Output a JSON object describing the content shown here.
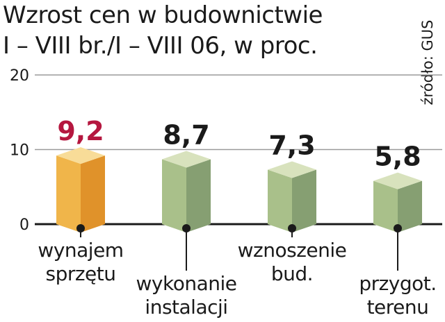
{
  "chart_data": {
    "type": "bar",
    "title_lines": [
      "Wzrost cen w budownictwie",
      "I – VIII br./I – VIII 06, w proc."
    ],
    "source": "źródło: GUS",
    "categories": [
      [
        "wynajem",
        "sprzętu"
      ],
      [
        "wykonanie",
        "instalacji"
      ],
      [
        "wznoszenie",
        "bud."
      ],
      [
        "przygot.",
        "terenu"
      ]
    ],
    "values": [
      9.2,
      8.7,
      7.3,
      5.8
    ],
    "value_labels": [
      "9,2",
      "8,7",
      "7,3",
      "5,8"
    ],
    "yticks": [
      "0",
      "10",
      "20"
    ],
    "ylim": [
      0,
      20
    ],
    "grid": true,
    "colors": {
      "highlight_front": "#f0b54a",
      "highlight_side": "#e0922a",
      "highlight_top": "#f8dc98",
      "highlight_label": "#b5173f",
      "bar_front": "#a9c08a",
      "bar_side": "#869f72",
      "bar_top": "#d8e2bd",
      "label": "#1a1a1a",
      "grid": "#9a9a9a"
    }
  }
}
